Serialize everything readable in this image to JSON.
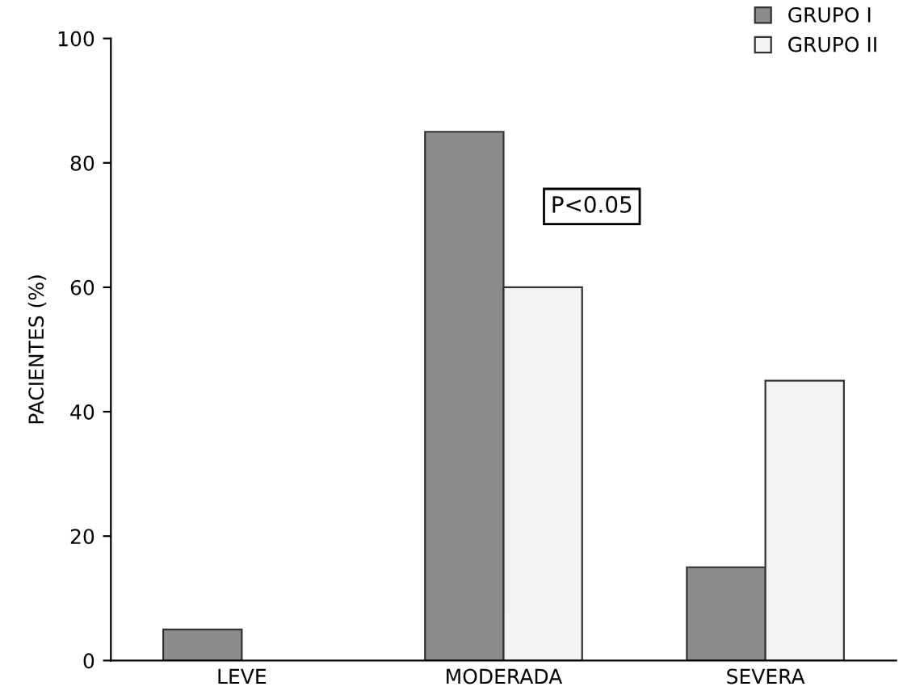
{
  "chart_data": {
    "type": "bar",
    "ylabel": "PACIENTES (%)",
    "categories": [
      "LEVE",
      "MODERADA",
      "SEVERA"
    ],
    "series": [
      {
        "name": "GRUPO I",
        "color": "#8c8c8c",
        "values": [
          5,
          85,
          15
        ]
      },
      {
        "name": "GRUPO II",
        "color": "#f2f2f2",
        "values": [
          null,
          60,
          45
        ]
      }
    ],
    "ylim": [
      0,
      100
    ],
    "yticks": [
      0,
      20,
      40,
      60,
      80,
      100
    ],
    "grid": false,
    "legend": "top right",
    "annotations": [
      "P<0.05"
    ]
  }
}
